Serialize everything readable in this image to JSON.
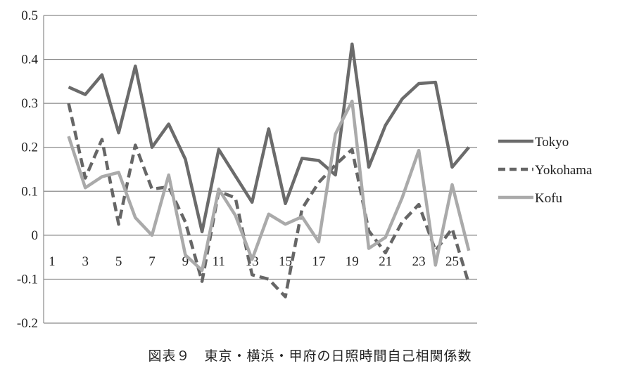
{
  "caption": "図表９　東京・横浜・甲府の日照時間自己相関係数",
  "chart_data": {
    "type": "line",
    "title": "",
    "xlabel": "",
    "ylabel": "",
    "x": [
      1,
      2,
      3,
      4,
      5,
      6,
      7,
      8,
      9,
      10,
      11,
      12,
      13,
      14,
      15,
      16,
      17,
      18,
      19,
      20,
      21,
      22,
      23,
      24,
      25,
      26
    ],
    "x_tick_labels": [
      "1",
      "3",
      "5",
      "7",
      "9",
      "11",
      "13",
      "15",
      "17",
      "19",
      "21",
      "23",
      "25"
    ],
    "x_tick_positions": [
      1,
      3,
      5,
      7,
      9,
      11,
      13,
      15,
      17,
      19,
      21,
      23,
      25
    ],
    "ylim": [
      -0.2,
      0.5
    ],
    "y_ticks": [
      -0.2,
      -0.1,
      0,
      0.1,
      0.2,
      0.3,
      0.4,
      0.5
    ],
    "y_tick_labels": [
      "-0.2",
      "-0.1",
      "0",
      "0.1",
      "0.2",
      "0.3",
      "0.4",
      "0.5"
    ],
    "grid": true,
    "legend_position": "right",
    "series": [
      {
        "name": "Tokyo",
        "color": "#6b6b6b",
        "dash": "solid",
        "x": [
          2,
          3,
          4,
          5,
          6,
          7,
          8,
          9,
          10,
          11,
          12,
          13,
          14,
          15,
          16,
          17,
          18,
          19,
          20,
          21,
          22,
          23,
          24,
          25,
          26
        ],
        "values": [
          0.337,
          0.32,
          0.365,
          0.233,
          0.385,
          0.2,
          0.253,
          0.173,
          0.008,
          0.195,
          0.135,
          0.075,
          0.242,
          0.072,
          0.175,
          0.17,
          0.137,
          0.435,
          0.155,
          0.25,
          0.31,
          0.345,
          0.348,
          0.155,
          0.2
        ]
      },
      {
        "name": "Yokohama",
        "color": "#666666",
        "dash": "dashed",
        "x": [
          2,
          3,
          4,
          5,
          6,
          7,
          8,
          9,
          10,
          11,
          12,
          13,
          14,
          15,
          16,
          17,
          18,
          19,
          20,
          21,
          22,
          23,
          24,
          25,
          26
        ],
        "values": [
          0.3,
          0.13,
          0.218,
          0.025,
          0.205,
          0.105,
          0.11,
          0.03,
          -0.105,
          0.1,
          0.085,
          -0.09,
          -0.1,
          -0.14,
          0.06,
          0.12,
          0.16,
          0.195,
          0.01,
          -0.04,
          0.03,
          0.07,
          -0.035,
          0.015,
          -0.11
        ]
      },
      {
        "name": "Kofu",
        "color": "#aaaaaa",
        "dash": "solid",
        "x": [
          2,
          3,
          4,
          5,
          6,
          7,
          8,
          9,
          10,
          11,
          12,
          13,
          14,
          15,
          16,
          17,
          18,
          19,
          20,
          21,
          22,
          23,
          24,
          25,
          26
        ],
        "values": [
          0.225,
          0.108,
          0.133,
          0.143,
          0.04,
          0.0,
          0.137,
          -0.045,
          -0.08,
          0.105,
          0.045,
          -0.055,
          0.048,
          0.025,
          0.042,
          -0.015,
          0.23,
          0.305,
          -0.03,
          -0.005,
          0.085,
          0.193,
          -0.068,
          0.115,
          -0.035
        ]
      }
    ]
  }
}
